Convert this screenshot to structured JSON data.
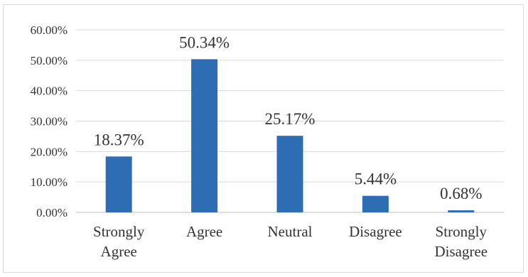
{
  "chart_data": {
    "type": "bar",
    "categories": [
      [
        "Strongly",
        "Agree"
      ],
      [
        "Agree"
      ],
      [
        "Neutral"
      ],
      [
        "Disagree"
      ],
      [
        "Strongly",
        "Disagree"
      ]
    ],
    "values": [
      18.37,
      50.34,
      25.17,
      5.44,
      0.68
    ],
    "data_labels": [
      "18.37%",
      "50.34%",
      "25.17%",
      "5.44%",
      "0.68%"
    ],
    "ylim": [
      0,
      60
    ],
    "y_ticks": [
      0,
      10,
      20,
      30,
      40,
      50,
      60
    ],
    "y_tick_labels": [
      "0.00%",
      "10.00%",
      "20.00%",
      "30.00%",
      "40.00%",
      "50.00%",
      "60.00%"
    ],
    "grid": true,
    "legend": "none",
    "colors": {
      "bar": "#2e6db4",
      "grid": "#d9d9d9",
      "axis": "#bfbfbf"
    }
  }
}
